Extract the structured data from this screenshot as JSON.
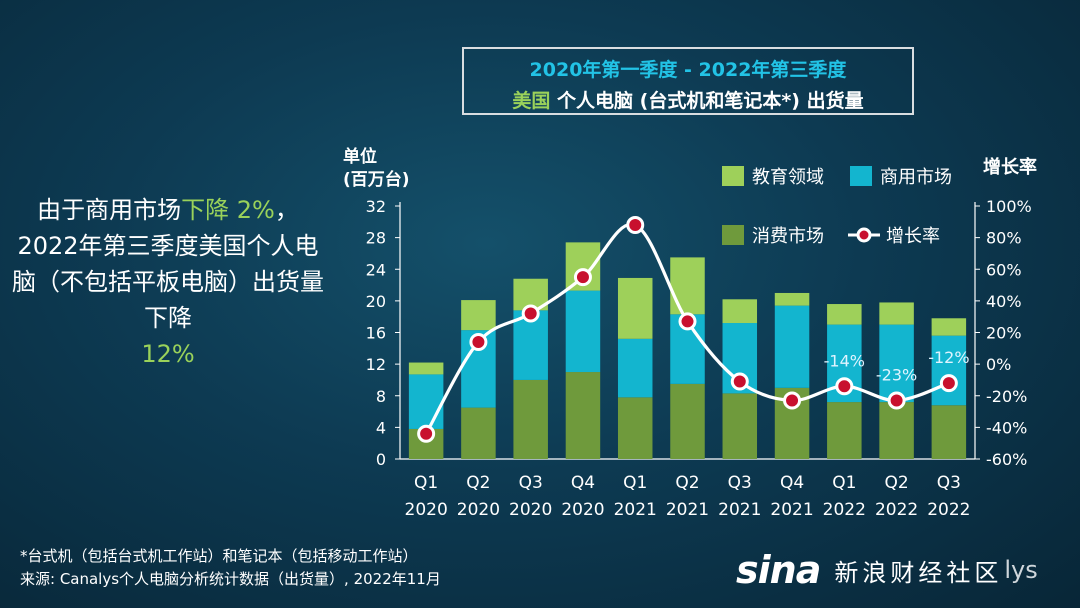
{
  "title": {
    "line1": "2020年第一季度 - 2022年第三季度",
    "line2_highlight": "美国",
    "line2_rest": " 个人电脑 (台式机和笔记本*) 出货量"
  },
  "side_text": {
    "p1": "由于商用市场",
    "p2": "下降 2%",
    "p3": "，2022年第三季度美国个人电脑（不包括平板电脑）出货量下降",
    "p4": "12%"
  },
  "footer": {
    "line1": "*台式机（包括台式机工作站）和笔记本（包括移动工作站）",
    "line2": "来源: Canalys个人电脑分析统计数据（出货量）, 2022年11月"
  },
  "watermark": {
    "logo": "sina",
    "text": "新浪财经社区",
    "tail": "lys"
  },
  "colors": {
    "consumer": "#6f9a3c",
    "commercial": "#13b5cf",
    "education": "#9ed05a",
    "growth_line": "#ffffff",
    "title_accent": "#22c3e6"
  },
  "chart_data": {
    "type": "bar",
    "stacked": true,
    "left_axis_label_line1": "单位",
    "left_axis_label_line2": "(百万台)",
    "right_axis_label": "增长率",
    "left_ylim": [
      0,
      32
    ],
    "left_ticks": [
      0,
      4,
      8,
      12,
      16,
      20,
      24,
      28,
      32
    ],
    "right_ylim": [
      -60,
      100
    ],
    "right_ticks": [
      "-60%",
      "-40%",
      "-20%",
      "0%",
      "20%",
      "40%",
      "60%",
      "80%",
      "100%"
    ],
    "right_tick_values": [
      -60,
      -40,
      -20,
      0,
      20,
      40,
      60,
      80,
      100
    ],
    "categories": [
      {
        "q": "Q1",
        "y": "2020"
      },
      {
        "q": "Q2",
        "y": "2020"
      },
      {
        "q": "Q3",
        "y": "2020"
      },
      {
        "q": "Q4",
        "y": "2020"
      },
      {
        "q": "Q1",
        "y": "2021"
      },
      {
        "q": "Q2",
        "y": "2021"
      },
      {
        "q": "Q3",
        "y": "2021"
      },
      {
        "q": "Q4",
        "y": "2021"
      },
      {
        "q": "Q1",
        "y": "2022"
      },
      {
        "q": "Q2",
        "y": "2022"
      },
      {
        "q": "Q3",
        "y": "2022"
      }
    ],
    "series": [
      {
        "name": "消费市场",
        "values": [
          3.8,
          6.5,
          10.0,
          11.0,
          7.8,
          9.5,
          8.3,
          9.0,
          7.2,
          7.2,
          6.8
        ]
      },
      {
        "name": "商用市场",
        "values": [
          6.9,
          9.8,
          8.8,
          10.3,
          7.4,
          8.8,
          8.9,
          10.4,
          9.8,
          9.8,
          8.8
        ]
      },
      {
        "name": "教育领域",
        "values": [
          1.5,
          3.8,
          4.0,
          6.1,
          7.7,
          7.2,
          3.0,
          1.6,
          2.6,
          2.8,
          2.2
        ]
      }
    ],
    "growth": {
      "name": "增长率",
      "values": [
        -44,
        14,
        32,
        55,
        88,
        27,
        -11,
        -23,
        -14,
        -23,
        -12
      ]
    },
    "annotations": [
      {
        "index": 8,
        "text": "-14%"
      },
      {
        "index": 9,
        "text": "-23%"
      },
      {
        "index": 10,
        "text": "-12%"
      }
    ],
    "legend": [
      "教育领域",
      "商用市场",
      "消费市场",
      "增长率"
    ],
    "legend_placement": "top-right"
  }
}
